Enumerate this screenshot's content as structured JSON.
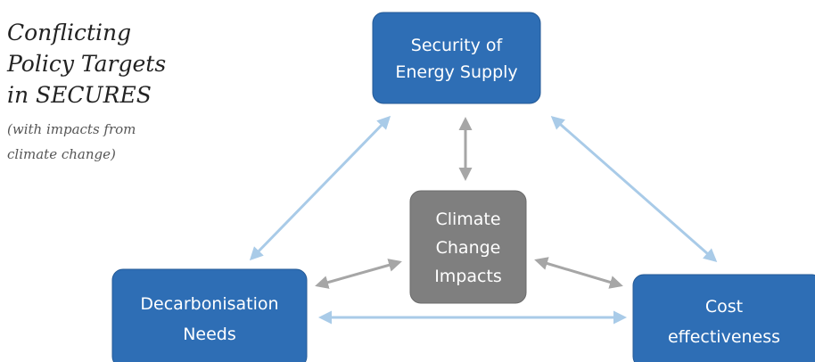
{
  "title": {
    "lines": [
      "Conflicting",
      "Policy Targets",
      "in SECURES"
    ]
  },
  "subtitle": {
    "lines": [
      "(with impacts from",
      "climate change)"
    ]
  },
  "nodes": [
    {
      "lines": [
        "Security of",
        "Energy Supply"
      ]
    },
    {
      "lines": [
        "Climate",
        "Change",
        "Impacts"
      ]
    },
    {
      "lines": [
        "Decarbonisation",
        "Needs"
      ]
    },
    {
      "lines": [
        "Cost",
        "effectiveness"
      ]
    }
  ]
}
